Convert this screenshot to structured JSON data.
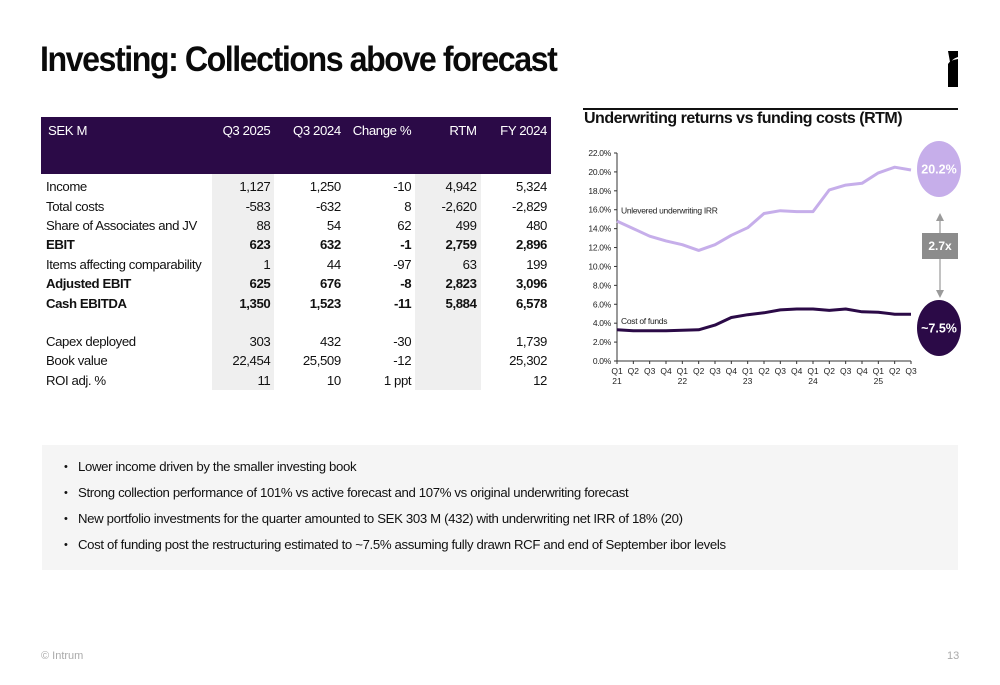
{
  "slide": {
    "title": "Investing: Collections above forecast",
    "logo_icon": "intrum-logo-icon",
    "footer_copyright": "© Intrum",
    "page_number": "13"
  },
  "table": {
    "headers": [
      "SEK M",
      "Q3 2025",
      "Q3 2024",
      "Change %",
      "RTM",
      "FY 2024"
    ],
    "rows": [
      {
        "label": "Income",
        "bold": false,
        "values": [
          "1,127",
          "1,250",
          "-10",
          "4,942",
          "5,324"
        ]
      },
      {
        "label": "Total costs",
        "bold": false,
        "values": [
          "-583",
          "-632",
          "8",
          "-2,620",
          "-2,829"
        ]
      },
      {
        "label": "Share of Associates and JV",
        "bold": false,
        "values": [
          "88",
          "54",
          "62",
          "499",
          "480"
        ]
      },
      {
        "label": "EBIT",
        "bold": true,
        "values": [
          "623",
          "632",
          "-1",
          "2,759",
          "2,896"
        ]
      },
      {
        "label": "Items affecting comparability",
        "bold": false,
        "values": [
          "1",
          "44",
          "-97",
          "63",
          "199"
        ]
      },
      {
        "label": "Adjusted EBIT",
        "bold": true,
        "values": [
          "625",
          "676",
          "-8",
          "2,823",
          "3,096"
        ]
      },
      {
        "label": "Cash EBITDA",
        "bold": true,
        "values": [
          "1,350",
          "1,523",
          "-11",
          "5,884",
          "6,578"
        ]
      },
      {
        "label": "Capex deployed",
        "bold": false,
        "values": [
          "303",
          "432",
          "-30",
          "",
          "1,739"
        ]
      },
      {
        "label": "Book value",
        "bold": false,
        "values": [
          "22,454",
          "25,509",
          "-12",
          "",
          "25,302"
        ]
      },
      {
        "label": "ROI adj. %",
        "bold": false,
        "values": [
          "11",
          "10",
          "1 ppt",
          "",
          "12"
        ]
      }
    ]
  },
  "bullets": [
    "Lower income driven by the smaller investing book",
    "Strong collection performance of 101% vs active forecast and 107% vs original underwriting forecast",
    "New portfolio investments for the quarter amounted to SEK 303 M (432) with underwriting net IRR of 18% (20)",
    "Cost of funding post the restructuring estimated to ~7.5% assuming fully drawn RCF and end of September ibor levels"
  ],
  "chart_data": {
    "type": "line",
    "title": "Underwriting returns vs funding costs (RTM)",
    "xlabel": "",
    "ylabel": "",
    "ylim": [
      0,
      22
    ],
    "yticks": [
      "0.0%",
      "2.0%",
      "4.0%",
      "6.0%",
      "8.0%",
      "10.0%",
      "12.0%",
      "14.0%",
      "16.0%",
      "18.0%",
      "20.0%",
      "22.0%"
    ],
    "ytick_values": [
      0,
      2,
      4,
      6,
      8,
      10,
      12,
      14,
      16,
      18,
      20,
      22
    ],
    "x": [
      "Q1 21",
      "Q2",
      "Q3",
      "Q4",
      "Q1 22",
      "Q2",
      "Q3",
      "Q4",
      "Q1 23",
      "Q2",
      "Q3",
      "Q4",
      "Q1 24",
      "Q2",
      "Q3",
      "Q4",
      "Q1 25",
      "Q2",
      "Q3"
    ],
    "x_quarters": [
      "Q1",
      "Q2",
      "Q3",
      "Q4",
      "Q1",
      "Q2",
      "Q3",
      "Q4",
      "Q1",
      "Q2",
      "Q3",
      "Q4",
      "Q1",
      "Q2",
      "Q3",
      "Q4",
      "Q1",
      "Q2",
      "Q3"
    ],
    "x_years": [
      "21",
      "",
      "",
      "",
      "22",
      "",
      "",
      "",
      "23",
      "",
      "",
      "",
      "24",
      "",
      "",
      "",
      "25",
      "",
      ""
    ],
    "grid": false,
    "legend": "inline-labels",
    "series": [
      {
        "name": "Unlevered underwriting IRR",
        "color": "#c6aeea",
        "values": [
          14.8,
          14.0,
          13.2,
          12.7,
          12.3,
          11.7,
          12.3,
          13.3,
          14.1,
          15.6,
          15.9,
          15.8,
          15.8,
          18.1,
          18.6,
          18.8,
          19.9,
          20.5,
          20.2
        ]
      },
      {
        "name": "Cost of funds",
        "color": "#2b0a47",
        "values": [
          3.3,
          3.2,
          3.2,
          3.2,
          3.25,
          3.3,
          3.8,
          4.6,
          4.9,
          5.1,
          5.4,
          5.5,
          5.5,
          5.35,
          5.5,
          5.2,
          5.15,
          4.95,
          4.95
        ]
      }
    ],
    "annotations": [
      {
        "text": "20.2%",
        "type": "bubble",
        "color": "#c6aeea",
        "series": "Unlevered underwriting IRR"
      },
      {
        "text": "~7.5%",
        "type": "bubble",
        "color": "#2b0a47",
        "series": "Cost of funds"
      },
      {
        "text": "2.7x",
        "type": "ratio-box",
        "color": "#8c8c8c"
      }
    ]
  }
}
